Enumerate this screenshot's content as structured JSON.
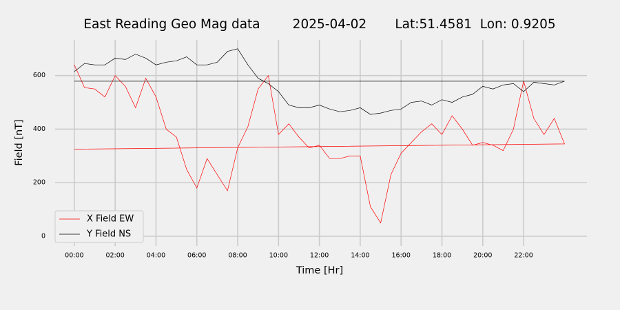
{
  "chart_data": {
    "type": "line",
    "title": "East Reading Geo Mag data        2025-04-02       Lat:51.4581  Lon: 0.9205",
    "x_label": "Time  [Hr]",
    "y_label": "Field  [nT]",
    "x": [
      0,
      0.5,
      1,
      1.5,
      2,
      2.5,
      3,
      3.5,
      4,
      4.5,
      5,
      5.5,
      6,
      6.5,
      7,
      7.5,
      8,
      8.5,
      9,
      9.5,
      10,
      10.5,
      11,
      11.5,
      12,
      12.5,
      13,
      13.5,
      14,
      14.5,
      15,
      15.5,
      16,
      16.5,
      17,
      17.5,
      18,
      18.5,
      19,
      19.5,
      20,
      20.5,
      21,
      21.5,
      22,
      22.5,
      23,
      23.5,
      24,
      0
    ],
    "series": [
      {
        "name": "X Field EW",
        "color": "#ff0000",
        "values": [
          640,
          555,
          550,
          520,
          600,
          560,
          480,
          590,
          520,
          400,
          370,
          250,
          180,
          290,
          230,
          170,
          330,
          410,
          550,
          600,
          380,
          420,
          370,
          330,
          340,
          290,
          290,
          300,
          300,
          110,
          50,
          230,
          310,
          350,
          390,
          420,
          380,
          450,
          400,
          340,
          350,
          340,
          320,
          400,
          580,
          440,
          380,
          440,
          345,
          325
        ]
      },
      {
        "name": "Y Field NS",
        "color": "#000000",
        "values": [
          615,
          645,
          640,
          640,
          665,
          660,
          680,
          665,
          640,
          650,
          655,
          670,
          640,
          640,
          650,
          690,
          700,
          640,
          590,
          570,
          540,
          490,
          480,
          480,
          490,
          475,
          465,
          470,
          480,
          455,
          460,
          470,
          475,
          500,
          505,
          490,
          510,
          500,
          520,
          530,
          560,
          550,
          565,
          570,
          540,
          575,
          570,
          565,
          579,
          579
        ]
      }
    ],
    "xlim": [
      -0.94,
      25.1
    ],
    "xticks": [
      {
        "value": 0,
        "label": "00:00"
      },
      {
        "value": 2,
        "label": "02:00"
      },
      {
        "value": 4,
        "label": "04:00"
      },
      {
        "value": 6,
        "label": "06:00"
      },
      {
        "value": 8,
        "label": "08:00"
      },
      {
        "value": 10,
        "label": "10:00"
      },
      {
        "value": 12,
        "label": "12:00"
      },
      {
        "value": 14,
        "label": "14:00"
      },
      {
        "value": 16,
        "label": "16:00"
      },
      {
        "value": 18,
        "label": "18:00"
      },
      {
        "value": 20,
        "label": "20:00"
      },
      {
        "value": 22,
        "label": "22:00"
      }
    ],
    "ylim": [
      -36,
      733
    ],
    "yticks": [
      0,
      200,
      400,
      600
    ],
    "grid": true,
    "legend": "lower left"
  }
}
